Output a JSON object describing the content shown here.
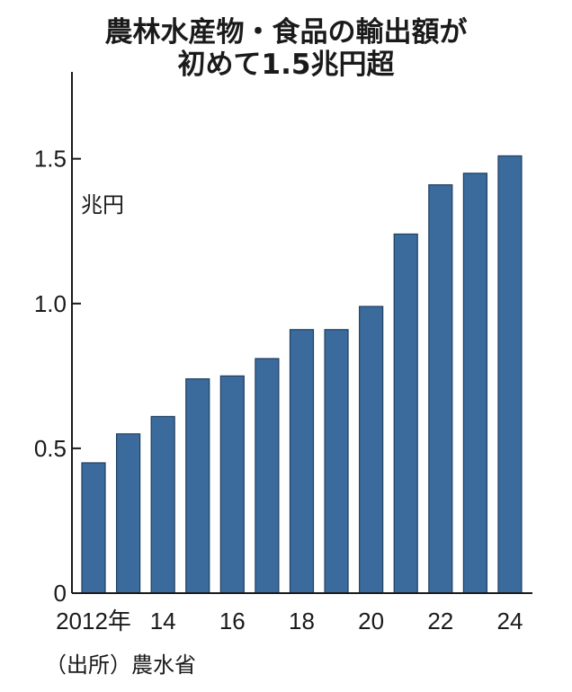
{
  "title_line1": "農林水産物・食品の輸出額が",
  "title_line2": "初めて1.5兆円超",
  "unit": "兆円",
  "source": "（出所）農水省",
  "colors": {
    "bar": "#3a6b9c",
    "axis": "#1a1a1a"
  },
  "chart_data": {
    "type": "bar",
    "categories": [
      "2012",
      "2013",
      "2014",
      "2015",
      "2016",
      "2017",
      "2018",
      "2019",
      "2020",
      "2021",
      "2022",
      "2023",
      "2024"
    ],
    "values": [
      0.45,
      0.55,
      0.61,
      0.74,
      0.75,
      0.81,
      0.91,
      0.91,
      0.99,
      1.24,
      1.41,
      1.45,
      1.51
    ],
    "ylim": [
      0,
      1.8
    ],
    "yticks": [
      0,
      0.5,
      1.0,
      1.5
    ],
    "ytick_labels": [
      "0",
      "0.5",
      "1.0",
      "1.5"
    ],
    "xtick_labels": [
      "2012年",
      "14",
      "16",
      "18",
      "20",
      "22",
      "24"
    ],
    "xtick_category_index": [
      0,
      2,
      4,
      6,
      8,
      10,
      12
    ],
    "grid": false
  }
}
